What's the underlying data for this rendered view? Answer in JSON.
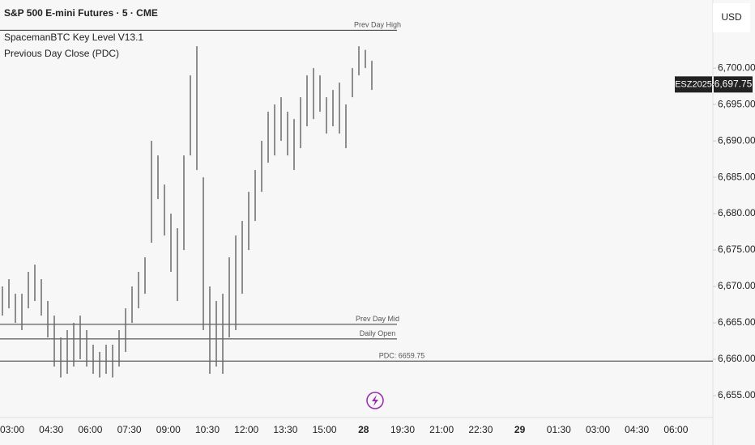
{
  "chart_data": {
    "type": "range-bar",
    "title": "S&P 500 E-mini Futures · 5 · CME",
    "indicators": [
      "SpacemanBTC Key Level V13.1",
      "Previous Day Close (PDC)"
    ],
    "currency": "USD",
    "color": "#6b6b6b",
    "high": [
      6670,
      6671,
      6669,
      6669,
      6672,
      6673,
      6671,
      6668,
      6666,
      6663,
      6664,
      6665,
      6666,
      6664,
      6662,
      6661,
      6662,
      6662,
      6664,
      6667,
      6670,
      6672,
      6674,
      6690,
      6688,
      6684,
      6680,
      6678,
      6688,
      6699,
      6703,
      6685,
      6670,
      6668,
      6669,
      6674,
      6677,
      6679,
      6683,
      6686,
      6690,
      6694,
      6695,
      6696,
      6694,
      6693,
      6696,
      6699,
      6700,
      6699,
      6696,
      6697,
      6698,
      6695,
      6700,
      6703,
      6702.5,
      6701
    ],
    "low": [
      6666,
      6667,
      6665,
      6664,
      6667,
      6668,
      6666,
      6663,
      6659,
      6657.5,
      6658,
      6659,
      6660,
      6659,
      6658,
      6657.5,
      6658,
      6657.5,
      6659,
      6661,
      6665,
      6667,
      6669,
      6676,
      6682,
      6677,
      6672,
      6668,
      6675,
      6688,
      6686,
      6664,
      6658,
      6659,
      6658,
      6663,
      6664,
      6669,
      6675,
      6679,
      6683,
      6687,
      6688,
      6690,
      6688,
      6686,
      6689,
      6692,
      6693,
      6694,
      6691,
      6692,
      6691,
      6689,
      6696,
      6699,
      6700,
      6697
    ],
    "levels": [
      {
        "label": "Prev Day High",
        "value": 6705.2
      },
      {
        "label": "Prev Day Mid",
        "value": 6664.8
      },
      {
        "label": "Daily Open",
        "value": 6662.8
      },
      {
        "label": "PDC: 6659.75",
        "value": 6659.75
      }
    ],
    "last_price": {
      "symbol": "ESZ2025",
      "value": 6697.75,
      "label": "6,697.75"
    },
    "ylim": [
      6652.0,
      6709.35
    ],
    "yticks": [
      {
        "value": 6655,
        "label": "6,655.00"
      },
      {
        "value": 6660,
        "label": "6,660.00"
      },
      {
        "value": 6665,
        "label": "6,665.00"
      },
      {
        "value": 6670,
        "label": "6,670.00"
      },
      {
        "value": 6675,
        "label": "6,675.00"
      },
      {
        "value": 6680,
        "label": "6,680.00"
      },
      {
        "value": 6685,
        "label": "6,685.00"
      },
      {
        "value": 6690,
        "label": "6,690.00"
      },
      {
        "value": 6695,
        "label": "6,695.00"
      },
      {
        "value": 6700,
        "label": "6,700.00"
      }
    ],
    "xticks": [
      {
        "label": "03:00",
        "bold": false
      },
      {
        "label": "04:30",
        "bold": false
      },
      {
        "label": "06:00",
        "bold": false
      },
      {
        "label": "07:30",
        "bold": false
      },
      {
        "label": "09:00",
        "bold": false
      },
      {
        "label": "10:30",
        "bold": false
      },
      {
        "label": "12:00",
        "bold": false
      },
      {
        "label": "13:30",
        "bold": false
      },
      {
        "label": "15:00",
        "bold": false
      },
      {
        "label": "28",
        "bold": true
      },
      {
        "label": "19:30",
        "bold": false
      },
      {
        "label": "21:00",
        "bold": false
      },
      {
        "label": "22:30",
        "bold": false
      },
      {
        "label": "29",
        "bold": true
      },
      {
        "label": "01:30",
        "bold": false
      },
      {
        "label": "03:00",
        "bold": false
      },
      {
        "label": "04:30",
        "bold": false
      },
      {
        "label": "06:00",
        "bold": false
      }
    ]
  }
}
